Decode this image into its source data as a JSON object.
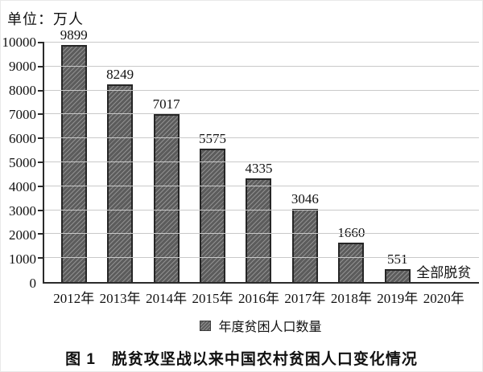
{
  "unit_label": "单位：万人",
  "legend": {
    "label": "年度贫困人口数量"
  },
  "caption": "图 1　脱贫攻坚战以来中国农村贫困人口变化情况",
  "colors": {
    "bar_fill": "#5c5c5c",
    "bar_hatch": "#909090",
    "bar_border": "#262626",
    "grid": "#c9c9c9",
    "axis": "#2b2b2b",
    "text": "#111111",
    "background": "#ffffff"
  },
  "chart_data": {
    "type": "bar",
    "title": "图 1　脱贫攻坚战以来中国农村贫困人口变化情况",
    "unit": "万人",
    "categories": [
      "2012年",
      "2013年",
      "2014年",
      "2015年",
      "2016年",
      "2017年",
      "2018年",
      "2019年",
      "2020年"
    ],
    "values": [
      9899,
      8249,
      7017,
      5575,
      4335,
      3046,
      1660,
      551,
      null
    ],
    "series_name": "年度贫困人口数量",
    "annotations": [
      {
        "category_index": 8,
        "text": "全部脱贫"
      }
    ],
    "xlabel": "",
    "ylabel": "单位：万人",
    "ylim": [
      0,
      10000
    ],
    "ytick_step": 1000,
    "grid": true,
    "hatch": "diagonal",
    "legend_position": "bottom"
  }
}
